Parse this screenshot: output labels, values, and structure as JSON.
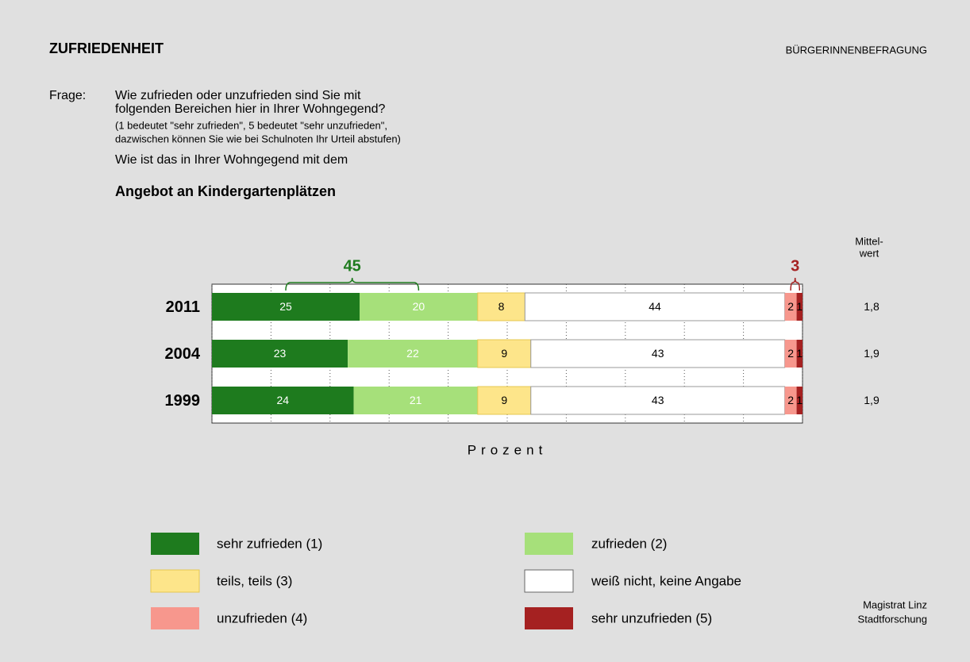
{
  "header": {
    "title": "ZUFRIEDENHEIT",
    "survey": "BÜRGERINNENBEFRAGUNG"
  },
  "question": {
    "label": "Frage:",
    "lines": [
      "Wie zufrieden oder unzufrieden sind Sie mit",
      "folgenden Bereichen hier in Ihrer Wohngegend?"
    ],
    "notes": [
      "(1 bedeutet \"sehr zufrieden\", 5 bedeutet \"sehr unzufrieden\",",
      "dazwischen können Sie wie bei Schulnoten Ihr Urteil abstufen)"
    ],
    "lead": "Wie ist das in Ihrer Wohngegend mit dem"
  },
  "chart_data": {
    "type": "stacked-bar-horizontal",
    "title": "Angebot an Kindergartenplätzen",
    "xlabel": "Prozent",
    "categories": [
      "2011",
      "2004",
      "1999"
    ],
    "series": [
      {
        "name": "sehr zufrieden (1)",
        "color": "#1e7b1e",
        "values": [
          25,
          23,
          24
        ]
      },
      {
        "name": "zufrieden (2)",
        "color": "#a6e07a",
        "values": [
          20,
          22,
          21
        ]
      },
      {
        "name": "teils, teils (3)",
        "color": "#fde58a",
        "values": [
          8,
          9,
          9
        ]
      },
      {
        "name": "weiß nicht, keine Angabe",
        "color": "#ffffff",
        "values": [
          44,
          43,
          43
        ]
      },
      {
        "name": "unzufrieden (4)",
        "color": "#f7978d",
        "values": [
          2,
          2,
          2
        ]
      },
      {
        "name": "sehr unzufrieden (5)",
        "color": "#a52121",
        "values": [
          1,
          1,
          1
        ]
      }
    ],
    "xlim": [
      0,
      100
    ],
    "xticks": [
      0,
      10,
      20,
      30,
      40,
      50,
      60,
      70,
      80,
      90,
      100
    ],
    "grid": true,
    "annotations": [
      {
        "text": "45"
      },
      {
        "text": "3"
      }
    ],
    "means": {
      "title": [
        "Mittel-",
        "wert"
      ],
      "values": [
        1.8,
        1.9,
        1.9
      ],
      "value_labels": [
        "1,8",
        "1,9",
        "1,9"
      ]
    }
  },
  "source": [
    "Magistrat Linz",
    "Stadtforschung"
  ]
}
